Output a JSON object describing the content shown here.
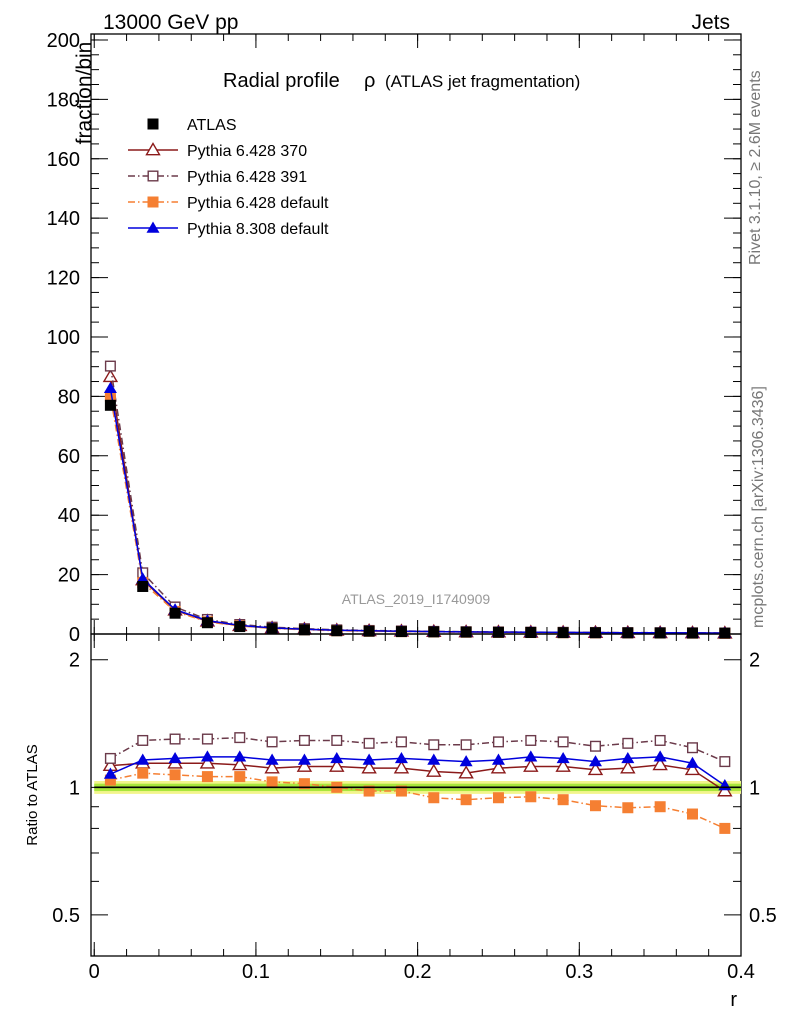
{
  "header": {
    "left": "13000 GeV pp",
    "right": "Jets"
  },
  "side_text": {
    "rivet": "Rivet 3.1.10, ≥ 2.6M events",
    "mcplots": "mcplots.cern.ch [arXiv:1306.3436]"
  },
  "chart_data": {
    "type": "scatter",
    "title": "Radial profile",
    "title_symbol": "ρ",
    "title_suffix": "(ATLAS jet fragmentation)",
    "watermark": "ATLAS_2019_I1740909",
    "xlabel": "r",
    "ylabel_main": "fraction/bin",
    "ylabel_ratio": "Ratio to ATLAS",
    "xlim": [
      -0.002,
      0.4
    ],
    "ylim_main": [
      0,
      202
    ],
    "ylim_ratio": [
      0.4,
      2.3
    ],
    "ratio_log_scale": true,
    "x_ticks": [
      "0",
      "0.1",
      "0.2",
      "0.3",
      "0.4"
    ],
    "y_ticks_main": [
      "0",
      "20",
      "40",
      "60",
      "80",
      "100",
      "120",
      "140",
      "160",
      "180",
      "200"
    ],
    "y_ticks_ratio": [
      "0.5",
      "1",
      "2"
    ],
    "legend_position": "top-left",
    "x": [
      0.01,
      0.03,
      0.05,
      0.07,
      0.09,
      0.11,
      0.13,
      0.15,
      0.17,
      0.19,
      0.21,
      0.23,
      0.25,
      0.27,
      0.29,
      0.31,
      0.33,
      0.35,
      0.37,
      0.39
    ],
    "series": [
      {
        "name": "ATLAS",
        "color": "#000000",
        "marker": "filled-square",
        "line": "none",
        "values": [
          77.0,
          16.0,
          7.0,
          3.8,
          2.5,
          1.8,
          1.4,
          1.1,
          0.95,
          0.82,
          0.72,
          0.64,
          0.57,
          0.51,
          0.46,
          0.42,
          0.38,
          0.35,
          0.32,
          0.29
        ],
        "ratio": [
          1,
          1,
          1,
          1,
          1,
          1,
          1,
          1,
          1,
          1,
          1,
          1,
          1,
          1,
          1,
          1,
          1,
          1,
          1,
          1
        ]
      },
      {
        "name": "Pythia 6.428 370",
        "color": "#8b1a1a",
        "marker": "open-triangle",
        "line": "solid",
        "values": [
          86.6,
          18.2,
          8.0,
          4.3,
          2.8,
          2.0,
          1.6,
          1.25,
          1.07,
          0.92,
          0.79,
          0.69,
          0.63,
          0.57,
          0.52,
          0.46,
          0.42,
          0.4,
          0.35,
          0.28
        ],
        "ratio": [
          1.125,
          1.14,
          1.14,
          1.14,
          1.13,
          1.11,
          1.12,
          1.12,
          1.11,
          1.11,
          1.09,
          1.08,
          1.11,
          1.12,
          1.12,
          1.1,
          1.11,
          1.13,
          1.1,
          0.98
        ]
      },
      {
        "name": "Pythia 6.428 391",
        "color": "#6b3a4a",
        "marker": "open-square",
        "line": "dash-dot",
        "values": [
          90.2,
          20.6,
          9.1,
          4.9,
          3.2,
          2.3,
          1.8,
          1.4,
          1.2,
          1.03,
          0.88,
          0.78,
          0.7,
          0.63,
          0.57,
          0.52,
          0.47,
          0.44,
          0.4,
          0.34
        ],
        "ratio": [
          1.17,
          1.29,
          1.3,
          1.3,
          1.31,
          1.28,
          1.29,
          1.29,
          1.27,
          1.28,
          1.26,
          1.26,
          1.28,
          1.29,
          1.28,
          1.25,
          1.27,
          1.29,
          1.24,
          1.15
        ]
      },
      {
        "name": "Pythia 6.428 default",
        "color": "#f57f32",
        "marker": "filled-square",
        "line": "dash-dot",
        "values": [
          80.1,
          17.3,
          7.6,
          4.1,
          2.7,
          1.87,
          1.43,
          1.1,
          0.93,
          0.8,
          0.68,
          0.6,
          0.54,
          0.49,
          0.43,
          0.38,
          0.34,
          0.32,
          0.28,
          0.23
        ],
        "ratio": [
          1.04,
          1.08,
          1.07,
          1.06,
          1.06,
          1.03,
          1.02,
          1.0,
          0.98,
          0.98,
          0.945,
          0.935,
          0.945,
          0.95,
          0.935,
          0.905,
          0.895,
          0.9,
          0.865,
          0.8
        ]
      },
      {
        "name": "Pythia 8.308 default",
        "color": "#0000dd",
        "marker": "filled-triangle",
        "line": "solid",
        "values": [
          82.7,
          18.6,
          8.2,
          4.5,
          2.9,
          2.05,
          1.6,
          1.26,
          1.08,
          0.94,
          0.82,
          0.72,
          0.65,
          0.59,
          0.53,
          0.48,
          0.44,
          0.41,
          0.36,
          0.29
        ],
        "ratio": [
          1.075,
          1.16,
          1.17,
          1.18,
          1.18,
          1.16,
          1.16,
          1.17,
          1.16,
          1.17,
          1.16,
          1.15,
          1.16,
          1.18,
          1.17,
          1.15,
          1.17,
          1.18,
          1.14,
          1.01
        ]
      }
    ],
    "uncertainty_band": {
      "inner_color": "#a8e63c",
      "outer_color": "#f2f58c",
      "inner_halfwidth": 0.02,
      "outer_halfwidth": 0.035
    }
  }
}
